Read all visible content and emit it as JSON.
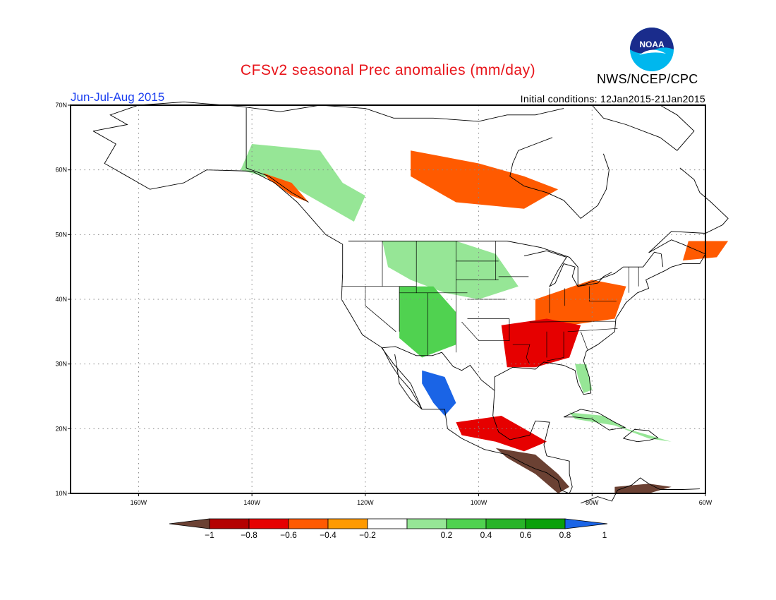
{
  "title": "CFSv2 seasonal Prec anomalies (mm/day)",
  "organization": "NWS/NCEP/CPC",
  "logo_text": "NOAA",
  "season_label": "Jun-Jul-Aug 2015",
  "initial_conditions": "Initial conditions: 12Jan2015-21Jan2015",
  "map": {
    "lon_range": [
      -172,
      -60
    ],
    "lat_range": [
      10,
      70
    ],
    "lon_ticks": [
      {
        "value": -160,
        "label": "160W"
      },
      {
        "value": -140,
        "label": "140W"
      },
      {
        "value": -120,
        "label": "120W"
      },
      {
        "value": -100,
        "label": "100W"
      },
      {
        "value": -80,
        "label": "80W"
      },
      {
        "value": -60,
        "label": "60W"
      }
    ],
    "lat_ticks": [
      {
        "value": 10,
        "label": "10N"
      },
      {
        "value": 20,
        "label": "20N"
      },
      {
        "value": 30,
        "label": "30N"
      },
      {
        "value": 40,
        "label": "40N"
      },
      {
        "value": 50,
        "label": "50N"
      },
      {
        "value": 60,
        "label": "60N"
      },
      {
        "value": 70,
        "label": "70N"
      }
    ],
    "grid": "dotted"
  },
  "colorbar": {
    "labels": [
      "-1",
      "-0.8",
      "-0.6",
      "-0.4",
      "-0.2",
      "0.2",
      "0.4",
      "0.6",
      "0.8",
      "1"
    ],
    "colors": [
      "#6b4133",
      "#b40000",
      "#e60000",
      "#ff5a00",
      "#ff9a00",
      "#ffffff",
      "#96e696",
      "#50d250",
      "#28b428",
      "#0aa00a",
      "#1a64e6"
    ]
  },
  "anomaly_regions": [
    {
      "name": "northwest-canada",
      "level": 0.4
    },
    {
      "name": "northern-plains",
      "level": 0.4
    },
    {
      "name": "southwest-us",
      "level": 0.6
    },
    {
      "name": "western-mexico",
      "level": 1
    },
    {
      "name": "florida",
      "level": 0.4
    },
    {
      "name": "caribbean",
      "level": 0.4
    },
    {
      "name": "hudson-bay",
      "level": -0.4
    },
    {
      "name": "ohio-valley",
      "level": -0.4
    },
    {
      "name": "southeast-us",
      "level": -0.6
    },
    {
      "name": "newfoundland",
      "level": -0.4
    },
    {
      "name": "southeast-alaska",
      "level": -0.4
    },
    {
      "name": "gulf-mexico",
      "level": -0.6
    },
    {
      "name": "central-america",
      "level": -1
    },
    {
      "name": "northern-south-america",
      "level": -1
    }
  ]
}
